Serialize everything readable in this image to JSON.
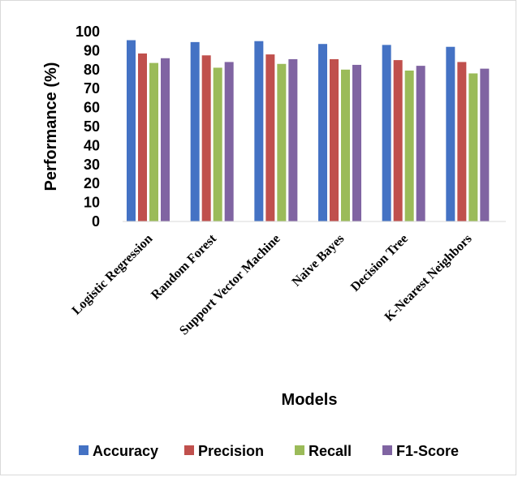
{
  "chart_data": {
    "type": "bar",
    "title": "",
    "xlabel": "Models",
    "ylabel": "Performance (%)",
    "ylim": [
      0,
      100
    ],
    "yticks": [
      0,
      10,
      20,
      30,
      40,
      50,
      60,
      70,
      80,
      90,
      100
    ],
    "grid": false,
    "legend_position": "bottom",
    "categories": [
      "Logistic Regression",
      "Random Forest",
      "Support Vector Machine",
      "Naive Bayes",
      "Decision Tree",
      "K-Nearest Neighbors"
    ],
    "series": [
      {
        "name": "Accuracy",
        "color": "#4472C4",
        "values": [
          95.5,
          94.5,
          95.0,
          93.5,
          93.0,
          92.0
        ]
      },
      {
        "name": "Precision",
        "color": "#C0504D",
        "values": [
          88.5,
          87.5,
          88.0,
          85.5,
          85.0,
          84.0
        ]
      },
      {
        "name": "Recall",
        "color": "#9BBB59",
        "values": [
          83.5,
          81.0,
          83.0,
          80.0,
          79.5,
          78.0
        ]
      },
      {
        "name": "F1-Score",
        "color": "#8064A2",
        "values": [
          86.0,
          84.0,
          85.5,
          82.5,
          82.0,
          80.5
        ]
      }
    ]
  }
}
